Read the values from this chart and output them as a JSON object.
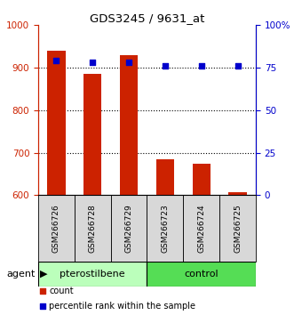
{
  "title": "GDS3245 / 9631_at",
  "samples": [
    "GSM266726",
    "GSM266728",
    "GSM266729",
    "GSM266723",
    "GSM266724",
    "GSM266725"
  ],
  "counts": [
    940,
    885,
    930,
    685,
    675,
    607
  ],
  "percentiles": [
    79,
    78,
    78,
    76,
    76,
    76
  ],
  "ylim_left": [
    600,
    1000
  ],
  "ylim_right": [
    0,
    100
  ],
  "yticks_left": [
    600,
    700,
    800,
    900,
    1000
  ],
  "yticks_right": [
    0,
    25,
    50,
    75,
    100
  ],
  "ytick_labels_right": [
    "0",
    "25",
    "50",
    "75",
    "100%"
  ],
  "bar_color": "#cc2200",
  "dot_color": "#0000cc",
  "group1_label": "pterostilbene",
  "group2_label": "control",
  "group1_color": "#aaeea a",
  "group2_color": "#55dd55",
  "group1_light": "#ccffcc",
  "group2_bright": "#55dd55",
  "agent_label": "agent",
  "legend_count_label": "count",
  "legend_pct_label": "percentile rank within the sample",
  "bar_width": 0.5,
  "grid_yticks": [
    700,
    800,
    900
  ]
}
